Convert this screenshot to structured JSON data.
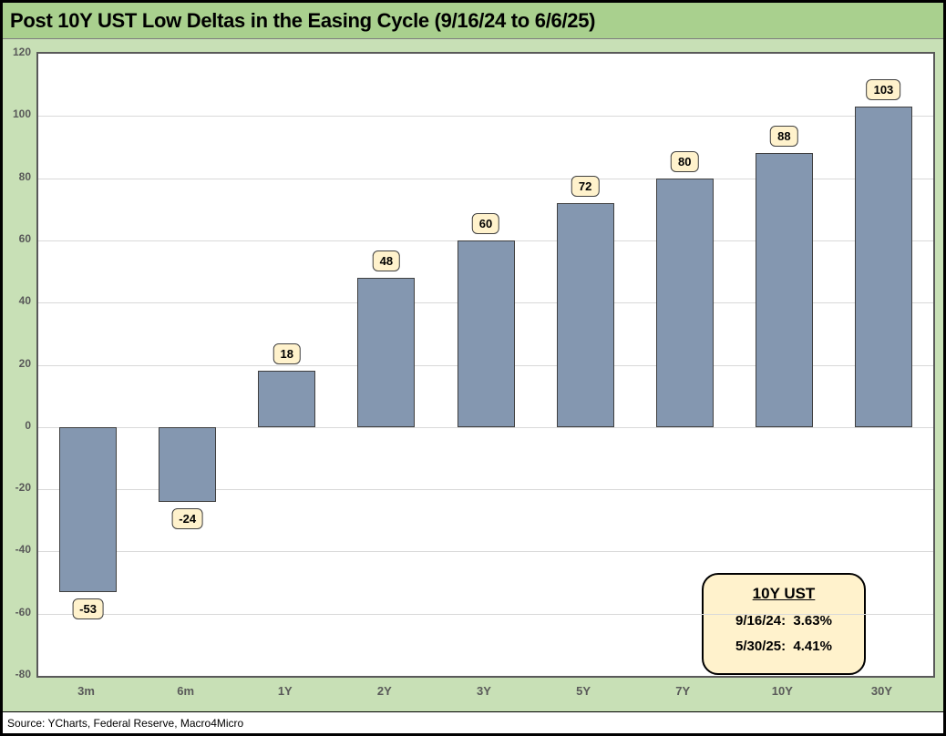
{
  "header": {
    "title": "Post 10Y UST Low Deltas in the Easing Cycle (9/16/24 to 6/6/25)"
  },
  "footer": {
    "source": "Source: YCharts, Federal Reserve, Macro4Micro"
  },
  "annotation": {
    "title": "10Y UST",
    "lines": [
      "9/16/24:  3.63%",
      "5/30/25:  4.41%"
    ]
  },
  "colors": {
    "title_strip": "#A9D08E",
    "chart_background": "#C8E0B6",
    "plot_background": "#FFFFFF",
    "bar_fill": "#8497B0",
    "bar_border": "#3F3F3F",
    "data_label_fill": "#FFF2CC",
    "gridline": "#D9D9D9",
    "tick_text": "#595959"
  },
  "chart_data": {
    "type": "bar",
    "title": "Post 10Y UST Low Deltas in the Easing Cycle (9/16/24 to 6/6/25)",
    "categories": [
      "3m",
      "6m",
      "1Y",
      "2Y",
      "3Y",
      "5Y",
      "7Y",
      "10Y",
      "30Y"
    ],
    "values": [
      -53,
      -24,
      18,
      48,
      60,
      72,
      80,
      88,
      103
    ],
    "data_labels": [
      "-53",
      "-24",
      "18",
      "48",
      "60",
      "72",
      "80",
      "88",
      "103"
    ],
    "xlabel": "",
    "ylabel": "",
    "ylim": [
      -80,
      120
    ],
    "ytick_step": 20,
    "grid": true,
    "legend": "none",
    "annotation_box": {
      "title": "10Y UST",
      "lines": [
        "9/16/24:  3.63%",
        "5/30/25:  4.41%"
      ]
    }
  }
}
